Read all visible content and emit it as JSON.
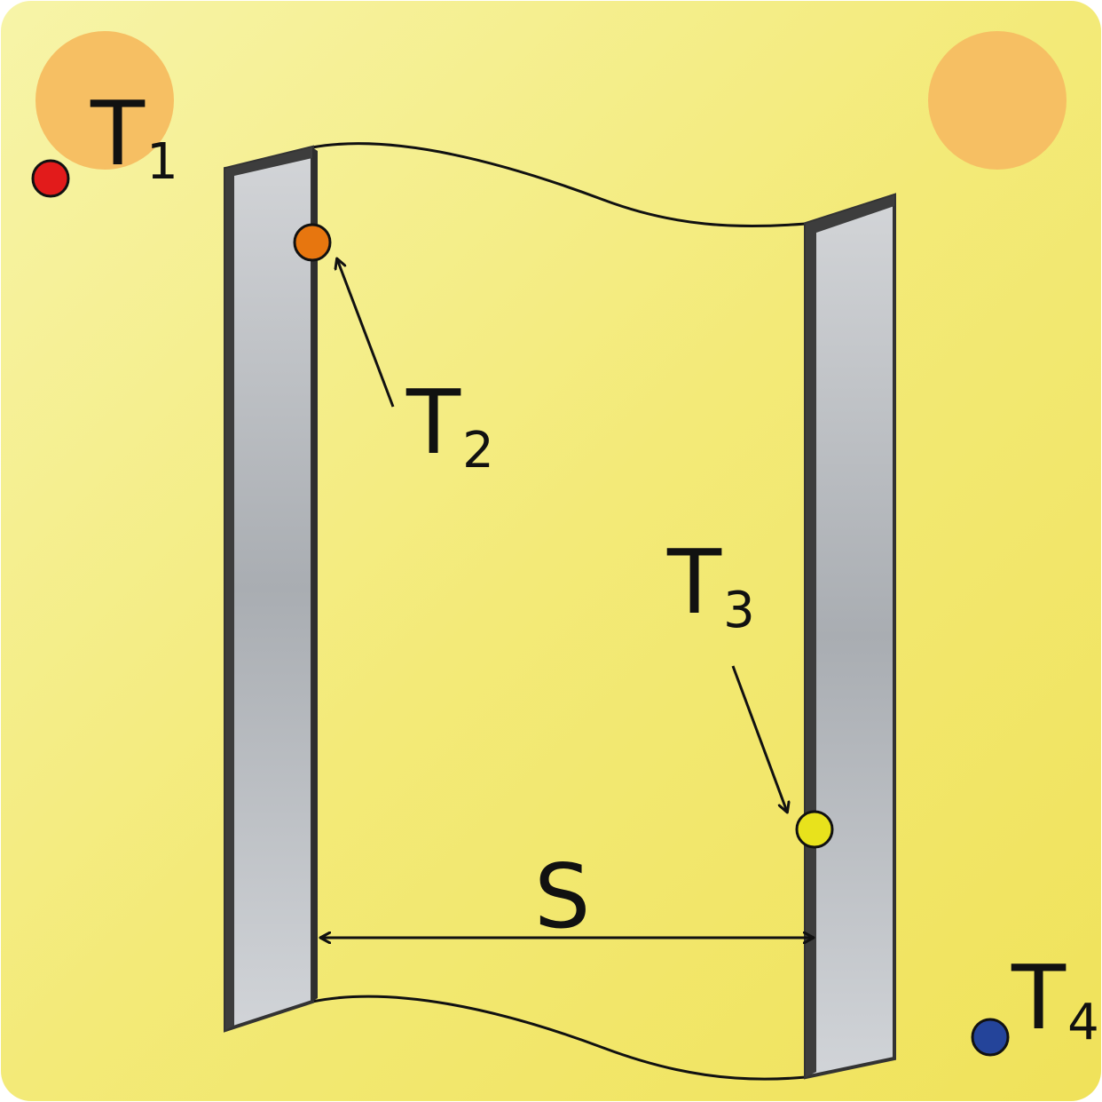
{
  "labels": {
    "t1": {
      "main": "T",
      "sub": "1"
    },
    "t2": {
      "main": "T",
      "sub": "2"
    },
    "t3": {
      "main": "T",
      "sub": "3"
    },
    "t4": {
      "main": "T",
      "sub": "4"
    },
    "gap": "S"
  },
  "colors": {
    "background_light": "#f5f19a",
    "background_dark": "#f0e25a",
    "radiator_glow": "#f6bf63",
    "plate_fill": "#b9bcc0",
    "plate_edge": "#3d3d3d",
    "outline": "#111111",
    "point_t1": "#e21b1b",
    "point_t2": "#e7760f",
    "point_t3": "#e8e21c",
    "point_t4": "#24449a"
  }
}
